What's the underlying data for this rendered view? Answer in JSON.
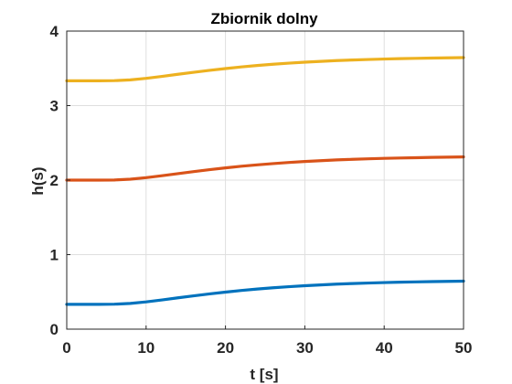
{
  "chart_data": {
    "type": "line",
    "title": "Zbiornik dolny",
    "xlabel": "t [s]",
    "ylabel": "h(s)",
    "xlim": [
      0,
      50
    ],
    "ylim": [
      0,
      4
    ],
    "xticks": [
      0,
      10,
      20,
      30,
      40,
      50
    ],
    "yticks": [
      0,
      1,
      2,
      3,
      4
    ],
    "grid": true,
    "legend": "none",
    "x": [
      0,
      2,
      4,
      6,
      8,
      10,
      12,
      14,
      16,
      18,
      20,
      22,
      24,
      26,
      28,
      30,
      32,
      34,
      36,
      38,
      40,
      42,
      44,
      46,
      48,
      50
    ],
    "series": [
      {
        "color": "#0072BD",
        "values": [
          0.333,
          0.333,
          0.333,
          0.335,
          0.345,
          0.366,
          0.392,
          0.42,
          0.447,
          0.473,
          0.497,
          0.519,
          0.538,
          0.555,
          0.57,
          0.583,
          0.594,
          0.604,
          0.612,
          0.619,
          0.625,
          0.63,
          0.634,
          0.638,
          0.641,
          0.644
        ]
      },
      {
        "color": "#D95319",
        "values": [
          2.0,
          2.0,
          2.0,
          2.002,
          2.012,
          2.033,
          2.059,
          2.087,
          2.114,
          2.14,
          2.164,
          2.186,
          2.205,
          2.222,
          2.237,
          2.25,
          2.261,
          2.271,
          2.279,
          2.286,
          2.292,
          2.297,
          2.301,
          2.305,
          2.308,
          2.311
        ]
      },
      {
        "color": "#EDB120",
        "values": [
          3.333,
          3.333,
          3.333,
          3.335,
          3.345,
          3.366,
          3.392,
          3.42,
          3.447,
          3.473,
          3.497,
          3.519,
          3.538,
          3.555,
          3.57,
          3.583,
          3.594,
          3.604,
          3.612,
          3.619,
          3.625,
          3.63,
          3.634,
          3.638,
          3.641,
          3.644
        ]
      }
    ]
  }
}
